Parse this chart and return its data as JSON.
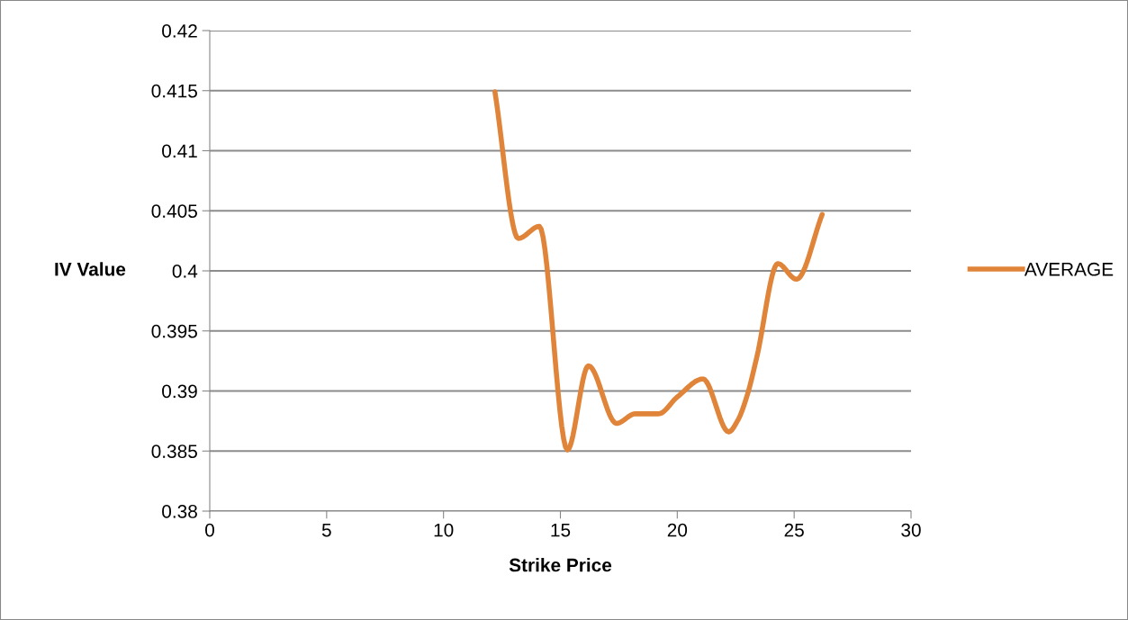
{
  "chart_data": {
    "type": "line",
    "xlabel": "Strike Price",
    "ylabel": "IV Value",
    "xlim": [
      0,
      30
    ],
    "xticks": [
      0,
      5,
      10,
      15,
      20,
      25,
      30
    ],
    "ylim": [
      0.38,
      0.42
    ],
    "yticks": [
      0.38,
      0.385,
      0.39,
      0.395,
      0.4,
      0.405,
      0.41,
      0.415,
      0.42
    ],
    "grid": "y",
    "legend": "right",
    "line_style": "solid",
    "series": [
      {
        "name": "AVERAGE",
        "color": "#e0843a",
        "x": [
          12.2,
          13.2,
          14.1,
          15.3,
          16.2,
          17.4,
          18.2,
          19.2,
          20.0,
          21.1,
          22.2,
          22.6,
          23.0,
          23.4,
          24.3,
          25.1,
          26.2
        ],
        "values": [
          0.4149,
          0.4027,
          0.4037,
          0.3851,
          0.3921,
          0.3873,
          0.3881,
          0.3881,
          0.3895,
          0.391,
          0.3866,
          0.3876,
          0.3897,
          0.3928,
          0.4006,
          0.3993,
          0.4047
        ]
      }
    ]
  }
}
